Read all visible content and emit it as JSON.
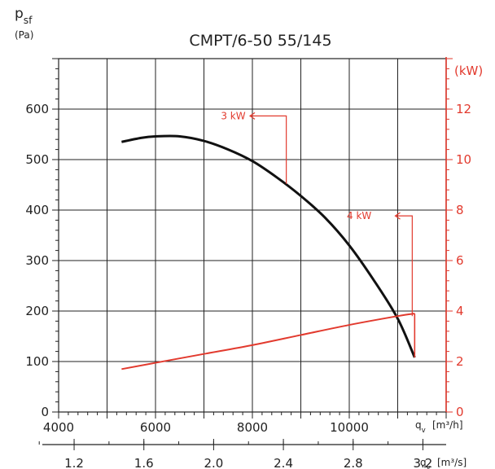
{
  "chart_data": {
    "type": "line",
    "title": "CMPT/6-50 55/145",
    "y_left": {
      "label_main": "p",
      "label_sub": "sf",
      "unit": "(Pa)",
      "ticks": [
        "0",
        "100",
        "200",
        "300",
        "400",
        "500",
        "600"
      ],
      "range": [
        0,
        700
      ]
    },
    "y_right": {
      "unit": "(kW)",
      "ticks": [
        "0",
        "2",
        "4",
        "6",
        "8",
        "10",
        "12"
      ],
      "range": [
        0,
        14
      ],
      "color": "#e23a2e"
    },
    "x_primary": {
      "label_main": "q",
      "label_sub": "v",
      "unit": "[m³/h]",
      "ticks": [
        "4000",
        "6000",
        "8000",
        "10000"
      ],
      "range": [
        4000,
        12000
      ]
    },
    "x_secondary": {
      "label_main": "q",
      "label_sub": "v",
      "unit": "[m³/s]",
      "ticks": [
        "1.2",
        "1.6",
        "2.0",
        "2.4",
        "2.8",
        "3.2"
      ],
      "tick_positions_m3h": [
        4320,
        5760,
        7200,
        8640,
        10080,
        11520
      ]
    },
    "series": [
      {
        "axis": "left",
        "color": "#111111",
        "points": [
          [
            5300,
            535
          ],
          [
            5700,
            543
          ],
          [
            6000,
            546
          ],
          [
            6500,
            546
          ],
          [
            7000,
            537
          ],
          [
            7500,
            520
          ],
          [
            8000,
            497
          ],
          [
            8500,
            465
          ],
          [
            9000,
            428
          ],
          [
            9500,
            385
          ],
          [
            10000,
            330
          ],
          [
            10500,
            262
          ],
          [
            11000,
            185
          ],
          [
            11350,
            108
          ]
        ]
      },
      {
        "axis": "right",
        "color": "#e23a2e",
        "points": [
          [
            5300,
            1.7
          ],
          [
            6000,
            1.95
          ],
          [
            7000,
            2.3
          ],
          [
            8000,
            2.65
          ],
          [
            9000,
            3.05
          ],
          [
            10000,
            3.45
          ],
          [
            11000,
            3.8
          ],
          [
            11350,
            3.9
          ]
        ]
      }
    ],
    "annotations": [
      {
        "text": "3 kW",
        "label_x": 7350,
        "label_y": 580,
        "arrow_to_x": 7950,
        "drop_x": 8700,
        "drop_to_y": 452
      },
      {
        "text": "4 kW",
        "label_x": 9950,
        "label_y": 382,
        "arrow_to_x": 10950,
        "drop_x": 11300,
        "drop_to_y": 190
      }
    ],
    "grid": true
  }
}
